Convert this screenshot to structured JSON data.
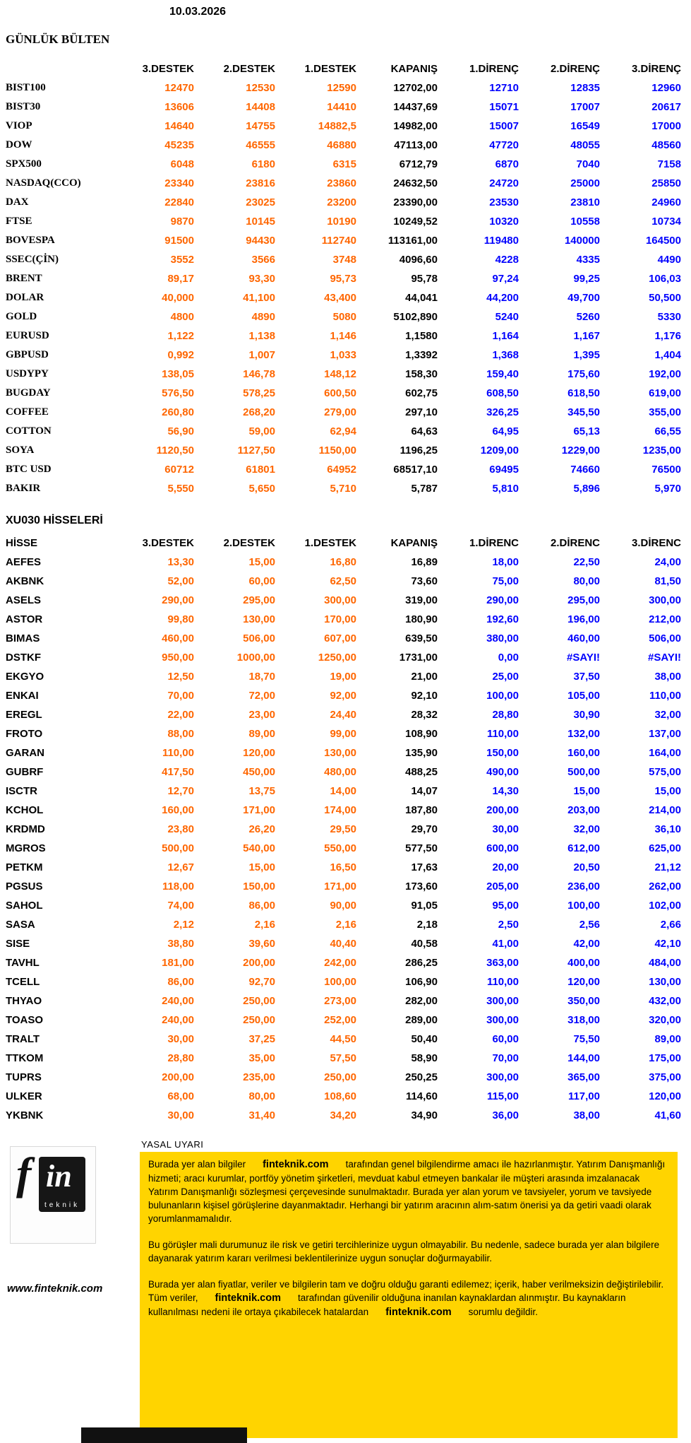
{
  "page": {
    "date": "10.03.2026"
  },
  "colors": {
    "support": "#ff6600",
    "resistance": "#0000fe",
    "close": "#000000",
    "legal_box": "#ffd400"
  },
  "bulletin": {
    "title": "GÜNLÜK BÜLTEN",
    "columns": [
      "",
      "3.DESTEK",
      "2.DESTEK",
      "1.DESTEK",
      "KAPANIŞ",
      "1.DİRENÇ",
      "2.DİRENÇ",
      "3.DİRENÇ"
    ],
    "rows": [
      {
        "label": "BIST100",
        "values": [
          "12470",
          "12530",
          "12590",
          "12702,00",
          "12710",
          "12835",
          "12960"
        ]
      },
      {
        "label": "BIST30",
        "values": [
          "13606",
          "14408",
          "14410",
          "14437,69",
          "15071",
          "17007",
          "20617"
        ]
      },
      {
        "label": "VIOP",
        "values": [
          "14640",
          "14755",
          "14882,5",
          "14982,00",
          "15007",
          "16549",
          "17000"
        ]
      },
      {
        "label": "DOW",
        "values": [
          "45235",
          "46555",
          "46880",
          "47113,00",
          "47720",
          "48055",
          "48560"
        ]
      },
      {
        "label": "SPX500",
        "values": [
          "6048",
          "6180",
          "6315",
          "6712,79",
          "6870",
          "7040",
          "7158"
        ]
      },
      {
        "label": "NASDAQ(CCO)",
        "values": [
          "23340",
          "23816",
          "23860",
          "24632,50",
          "24720",
          "25000",
          "25850"
        ]
      },
      {
        "label": "DAX",
        "values": [
          "22840",
          "23025",
          "23200",
          "23390,00",
          "23530",
          "23810",
          "24960"
        ]
      },
      {
        "label": "FTSE",
        "values": [
          "9870",
          "10145",
          "10190",
          "10249,52",
          "10320",
          "10558",
          "10734"
        ]
      },
      {
        "label": "BOVESPA",
        "values": [
          "91500",
          "94430",
          "112740",
          "113161,00",
          "119480",
          "140000",
          "164500"
        ]
      },
      {
        "label": "SSEC(ÇİN)",
        "values": [
          "3552",
          "3566",
          "3748",
          "4096,60",
          "4228",
          "4335",
          "4490"
        ]
      },
      {
        "label": "BRENT",
        "values": [
          "89,17",
          "93,30",
          "95,73",
          "95,78",
          "97,24",
          "99,25",
          "106,03"
        ]
      },
      {
        "label": "DOLAR",
        "values": [
          "40,000",
          "41,100",
          "43,400",
          "44,041",
          "44,200",
          "49,700",
          "50,500"
        ]
      },
      {
        "label": "GOLD",
        "values": [
          "4800",
          "4890",
          "5080",
          "5102,890",
          "5240",
          "5260",
          "5330"
        ]
      },
      {
        "label": "EURUSD",
        "values": [
          "1,122",
          "1,138",
          "1,146",
          "1,1580",
          "1,164",
          "1,167",
          "1,176"
        ]
      },
      {
        "label": "GBPUSD",
        "values": [
          "0,992",
          "1,007",
          "1,033",
          "1,3392",
          "1,368",
          "1,395",
          "1,404"
        ]
      },
      {
        "label": "USDYPY",
        "values": [
          "138,05",
          "146,78",
          "148,12",
          "158,30",
          "159,40",
          "175,60",
          "192,00"
        ]
      },
      {
        "label": "BUGDAY",
        "values": [
          "576,50",
          "578,25",
          "600,50",
          "602,75",
          "608,50",
          "618,50",
          "619,00"
        ]
      },
      {
        "label": "COFFEE",
        "values": [
          "260,80",
          "268,20",
          "279,00",
          "297,10",
          "326,25",
          "345,50",
          "355,00"
        ]
      },
      {
        "label": "COTTON",
        "values": [
          "56,90",
          "59,00",
          "62,94",
          "64,63",
          "64,95",
          "65,13",
          "66,55"
        ]
      },
      {
        "label": "SOYA",
        "values": [
          "1120,50",
          "1127,50",
          "1150,00",
          "1196,25",
          "1209,00",
          "1229,00",
          "1235,00"
        ]
      },
      {
        "label": "BTC USD",
        "values": [
          "60712",
          "61801",
          "64952",
          "68517,10",
          "69495",
          "74660",
          "76500"
        ]
      },
      {
        "label": "BAKIR",
        "values": [
          "5,550",
          "5,650",
          "5,710",
          "5,787",
          "5,810",
          "5,896",
          "5,970"
        ]
      }
    ]
  },
  "stocks": {
    "title": "XU030 HİSSELERİ",
    "columns": [
      "HİSSE",
      "3.DESTEK",
      "2.DESTEK",
      "1.DESTEK",
      "KAPANIŞ",
      "1.DİRENC",
      "2.DİRENC",
      "3.DİRENC"
    ],
    "rows": [
      {
        "label": "AEFES",
        "values": [
          "13,30",
          "15,00",
          "16,80",
          "16,89",
          "18,00",
          "22,50",
          "24,00"
        ]
      },
      {
        "label": "AKBNK",
        "values": [
          "52,00",
          "60,00",
          "62,50",
          "73,60",
          "75,00",
          "80,00",
          "81,50"
        ]
      },
      {
        "label": "ASELS",
        "values": [
          "290,00",
          "295,00",
          "300,00",
          "319,00",
          "290,00",
          "295,00",
          "300,00"
        ]
      },
      {
        "label": "ASTOR",
        "values": [
          "99,80",
          "130,00",
          "170,00",
          "180,90",
          "192,60",
          "196,00",
          "212,00"
        ]
      },
      {
        "label": "BIMAS",
        "values": [
          "460,00",
          "506,00",
          "607,00",
          "639,50",
          "380,00",
          "460,00",
          "506,00"
        ]
      },
      {
        "label": "DSTKF",
        "values": [
          "950,00",
          "1000,00",
          "1250,00",
          "1731,00",
          "0,00",
          "#SAYI!",
          "#SAYI!"
        ]
      },
      {
        "label": "EKGYO",
        "values": [
          "12,50",
          "18,70",
          "19,00",
          "21,00",
          "25,00",
          "37,50",
          "38,00"
        ]
      },
      {
        "label": "ENKAI",
        "values": [
          "70,00",
          "72,00",
          "92,00",
          "92,10",
          "100,00",
          "105,00",
          "110,00"
        ]
      },
      {
        "label": "EREGL",
        "values": [
          "22,00",
          "23,00",
          "24,40",
          "28,32",
          "28,80",
          "30,90",
          "32,00"
        ]
      },
      {
        "label": "FROTO",
        "values": [
          "88,00",
          "89,00",
          "99,00",
          "108,90",
          "110,00",
          "132,00",
          "137,00"
        ]
      },
      {
        "label": "GARAN",
        "values": [
          "110,00",
          "120,00",
          "130,00",
          "135,90",
          "150,00",
          "160,00",
          "164,00"
        ]
      },
      {
        "label": "GUBRF",
        "values": [
          "417,50",
          "450,00",
          "480,00",
          "488,25",
          "490,00",
          "500,00",
          "575,00"
        ]
      },
      {
        "label": "ISCTR",
        "values": [
          "12,70",
          "13,75",
          "14,00",
          "14,07",
          "14,30",
          "15,00",
          "15,00"
        ]
      },
      {
        "label": "KCHOL",
        "values": [
          "160,00",
          "171,00",
          "174,00",
          "187,80",
          "200,00",
          "203,00",
          "214,00"
        ]
      },
      {
        "label": "KRDMD",
        "values": [
          "23,80",
          "26,20",
          "29,50",
          "29,70",
          "30,00",
          "32,00",
          "36,10"
        ]
      },
      {
        "label": "MGROS",
        "values": [
          "500,00",
          "540,00",
          "550,00",
          "577,50",
          "600,00",
          "612,00",
          "625,00"
        ]
      },
      {
        "label": "PETKM",
        "values": [
          "12,67",
          "15,00",
          "16,50",
          "17,63",
          "20,00",
          "20,50",
          "21,12"
        ]
      },
      {
        "label": "PGSUS",
        "values": [
          "118,00",
          "150,00",
          "171,00",
          "173,60",
          "205,00",
          "236,00",
          "262,00"
        ]
      },
      {
        "label": "SAHOL",
        "values": [
          "74,00",
          "86,00",
          "90,00",
          "91,05",
          "95,00",
          "100,00",
          "102,00"
        ]
      },
      {
        "label": "SASA",
        "values": [
          "2,12",
          "2,16",
          "2,16",
          "2,18",
          "2,50",
          "2,56",
          "2,66"
        ]
      },
      {
        "label": "SISE",
        "values": [
          "38,80",
          "39,60",
          "40,40",
          "40,58",
          "41,00",
          "42,00",
          "42,10"
        ]
      },
      {
        "label": "TAVHL",
        "values": [
          "181,00",
          "200,00",
          "242,00",
          "286,25",
          "363,00",
          "400,00",
          "484,00"
        ]
      },
      {
        "label": "TCELL",
        "values": [
          "86,00",
          "92,70",
          "100,00",
          "106,90",
          "110,00",
          "120,00",
          "130,00"
        ]
      },
      {
        "label": "THYAO",
        "values": [
          "240,00",
          "250,00",
          "273,00",
          "282,00",
          "300,00",
          "350,00",
          "432,00"
        ]
      },
      {
        "label": "TOASO",
        "values": [
          "240,00",
          "250,00",
          "252,00",
          "289,00",
          "300,00",
          "318,00",
          "320,00"
        ]
      },
      {
        "label": "TRALT",
        "values": [
          "30,00",
          "37,25",
          "44,50",
          "50,40",
          "60,00",
          "75,50",
          "89,00"
        ]
      },
      {
        "label": "TTKOM",
        "values": [
          "28,80",
          "35,00",
          "57,50",
          "58,90",
          "70,00",
          "144,00",
          "175,00"
        ]
      },
      {
        "label": "TUPRS",
        "values": [
          "200,00",
          "235,00",
          "250,00",
          "250,25",
          "300,00",
          "365,00",
          "375,00"
        ]
      },
      {
        "label": "ULKER",
        "values": [
          "68,00",
          "80,00",
          "108,60",
          "114,60",
          "115,00",
          "117,00",
          "120,00"
        ]
      },
      {
        "label": "YKBNK",
        "values": [
          "30,00",
          "31,40",
          "34,20",
          "34,90",
          "36,00",
          "38,00",
          "41,60"
        ]
      }
    ]
  },
  "footer": {
    "logo_f": "f",
    "logo_in": "in",
    "logo_sub": "teknik",
    "website": "www.finteknik.com",
    "legal_title": "YASAL UYARI",
    "disclaimer": [
      [
        {
          "t": "Burada yer alan bilgiler",
          "b": false
        },
        {
          "t": "finteknik.com",
          "b": true
        },
        {
          "t": "tarafından genel bilgilendirme amacı ile hazırlanmıştır. Yatırım Danışmanlığı hizmeti; aracı kurumlar, portföy yönetim şirketleri, mevduat kabul etmeyen bankalar ile müşteri arasında imzalanacak Yatırım Danışmanlığı sözleşmesi çerçevesinde sunulmaktadır. Burada yer alan yorum ve tavsiyeler, yorum ve tavsiyede bulunanların kişisel görüşlerine dayanmaktadır. Herhangi bir yatırım aracının alım-satım önerisi ya da getiri vaadi olarak yorumlanmamalıdır.",
          "b": false
        }
      ],
      [
        {
          "t": "Bu görüşler mali durumunuz ile risk ve getiri tercihlerinize uygun olmayabilir. Bu nedenle, sadece burada yer alan bilgilere dayanarak yatırım kararı verilmesi beklentilerinize uygun sonuçlar doğurmayabilir.",
          "b": false
        }
      ],
      [
        {
          "t": "Burada yer alan fiyatlar, veriler ve bilgilerin tam ve doğru olduğu garanti edilemez; içerik, haber verilmeksizin değiştirilebilir. Tüm veriler,",
          "b": false
        },
        {
          "t": "finteknik.com",
          "b": true
        },
        {
          "t": "tarafından güvenilir olduğuna inanılan kaynaklardan alınmıştır. Bu kaynakların kullanılması nedeni ile ortaya çıkabilecek hatalardan",
          "b": false
        },
        {
          "t": "finteknik.com",
          "b": true
        },
        {
          "t": "sorumlu değildir.",
          "b": false
        }
      ]
    ]
  }
}
